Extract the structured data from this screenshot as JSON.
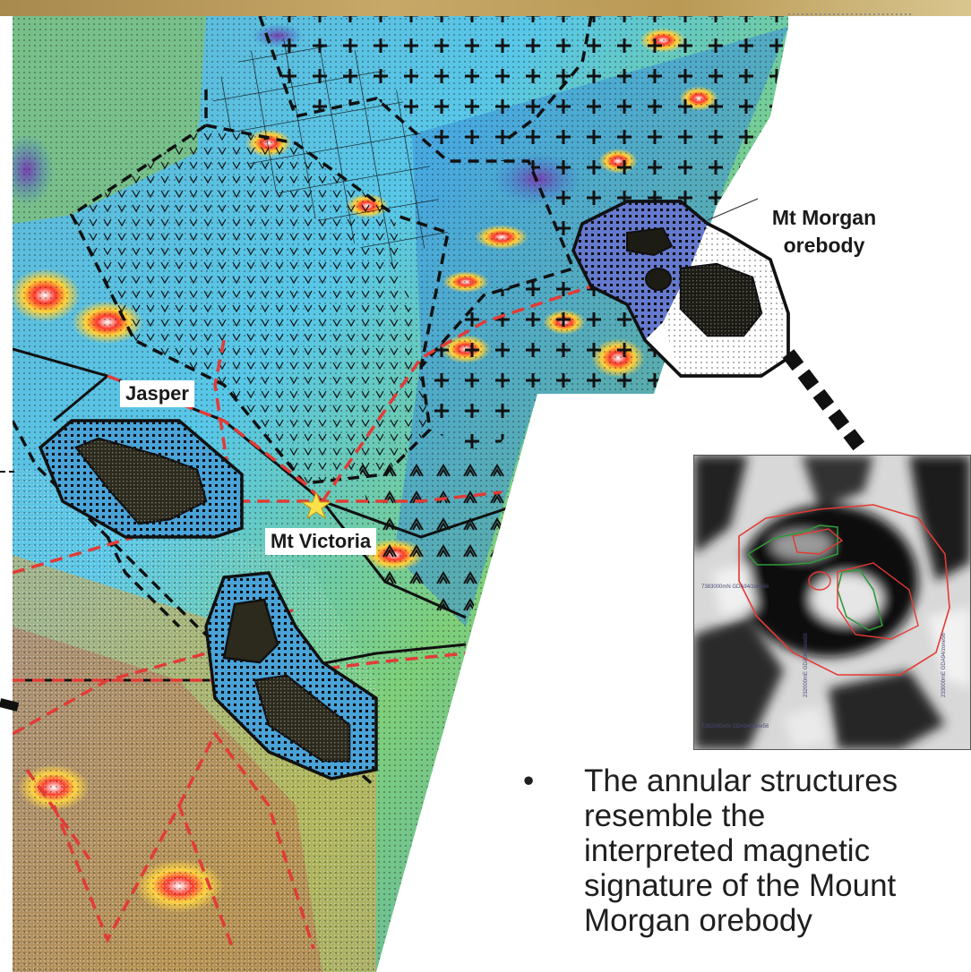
{
  "labels": {
    "jasper": "Jasper",
    "mt_victoria": "Mt Victoria",
    "mt_morgan": [
      "Mt Morgan",
      "orebody"
    ]
  },
  "inset": {
    "coords": [
      "7383000mN GDA94/zone56",
      "7382000mN GDA94/zone56",
      "232000mE GDA94/zone56",
      "233000mE GDA94/zone56"
    ]
  },
  "bullet": {
    "marker": "•",
    "lines": [
      "The annular structures",
      "resemble the",
      "interpreted magnetic",
      "signature of the Mount",
      "Morgan orebody"
    ]
  },
  "colors": {
    "fault": "#e23b36",
    "contact": "#111111",
    "accent": "#c2a35f"
  }
}
